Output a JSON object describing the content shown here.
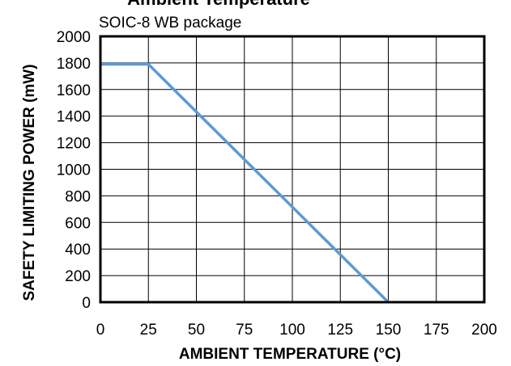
{
  "chart_data": {
    "type": "line",
    "title": "Ambient Temperature",
    "subtitle": "SOIC-8 WB package",
    "xlabel": "AMBIENT TEMPERATURE (°C)",
    "ylabel": "SAFETY  LIMITING POWER (mW)",
    "xlim": [
      0,
      200
    ],
    "ylim": [
      0,
      2000
    ],
    "x_ticks": [
      "0",
      "25",
      "50",
      "75",
      "100",
      "125",
      "150",
      "175",
      "200"
    ],
    "y_ticks": [
      "0",
      "200",
      "400",
      "600",
      "800",
      "1000",
      "1200",
      "1400",
      "1600",
      "1800",
      "2000"
    ],
    "grid": true,
    "series": [
      {
        "x": [
          0,
          25,
          150
        ],
        "y": [
          1790,
          1790,
          0
        ],
        "color": "#5b9bd5"
      }
    ]
  }
}
